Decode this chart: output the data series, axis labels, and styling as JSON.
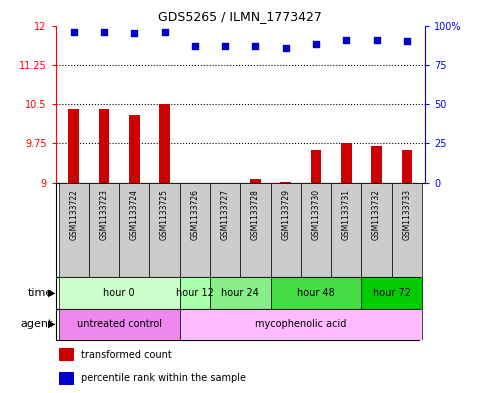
{
  "title": "GDS5265 / ILMN_1773427",
  "samples": [
    "GSM1133722",
    "GSM1133723",
    "GSM1133724",
    "GSM1133725",
    "GSM1133726",
    "GSM1133727",
    "GSM1133728",
    "GSM1133729",
    "GSM1133730",
    "GSM1133731",
    "GSM1133732",
    "GSM1133733"
  ],
  "bar_values": [
    10.4,
    10.4,
    10.3,
    10.5,
    9.0,
    9.0,
    9.07,
    9.01,
    9.62,
    9.75,
    9.7,
    9.62
  ],
  "scatter_values": [
    96,
    96,
    95,
    96,
    87,
    87,
    87,
    86,
    88,
    91,
    91,
    90
  ],
  "ylim_left": [
    9.0,
    12.0
  ],
  "ylim_right": [
    0,
    100
  ],
  "yticks_left": [
    9.0,
    9.75,
    10.5,
    11.25,
    12.0
  ],
  "ytick_labels_left": [
    "9",
    "9.75",
    "10.5",
    "11.25",
    "12"
  ],
  "yticks_right": [
    0,
    25,
    50,
    75,
    100
  ],
  "ytick_labels_right": [
    "0",
    "25",
    "50",
    "75",
    "100%"
  ],
  "hlines": [
    9.75,
    10.5,
    11.25
  ],
  "bar_color": "#cc0000",
  "scatter_color": "#0000cc",
  "bar_bottom": 9.0,
  "bar_width": 0.35,
  "time_groups": [
    {
      "label": "hour 0",
      "start": 0,
      "end": 3,
      "color": "#ccffcc"
    },
    {
      "label": "hour 12",
      "start": 4,
      "end": 4,
      "color": "#aaffaa"
    },
    {
      "label": "hour 24",
      "start": 5,
      "end": 6,
      "color": "#88ee88"
    },
    {
      "label": "hour 48",
      "start": 7,
      "end": 9,
      "color": "#44dd44"
    },
    {
      "label": "hour 72",
      "start": 10,
      "end": 11,
      "color": "#00cc00"
    }
  ],
  "agent_groups": [
    {
      "label": "untreated control",
      "start": 0,
      "end": 3,
      "color": "#ee88ee"
    },
    {
      "label": "mycophenolic acid",
      "start": 4,
      "end": 11,
      "color": "#ffbbff"
    }
  ],
  "legend_items": [
    {
      "label": "transformed count",
      "color": "#cc0000"
    },
    {
      "label": "percentile rank within the sample",
      "color": "#0000cc"
    }
  ],
  "sample_bg_color": "#cccccc",
  "plot_bg_color": "#ffffff",
  "spine_color": "#000000"
}
